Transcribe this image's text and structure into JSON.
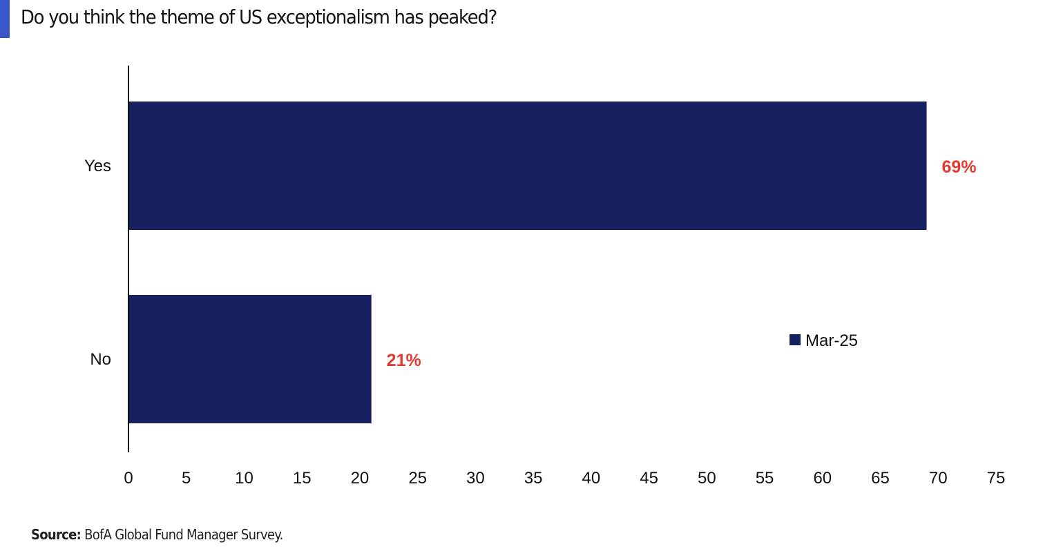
{
  "title": "Do you think the theme of US exceptionalism has peaked?",
  "source": {
    "label": "Source:",
    "text": " BofA Global Fund Manager Survey."
  },
  "colors": {
    "accent": "#3a55c8",
    "bar": "#172060",
    "data_label": "#e03c31"
  },
  "chart_data": {
    "type": "bar",
    "orientation": "horizontal",
    "title": "Do you think the theme of US exceptionalism has peaked?",
    "categories": [
      "Yes",
      "No"
    ],
    "series": [
      {
        "name": "Mar-25",
        "values": [
          69,
          21
        ]
      }
    ],
    "data_labels": [
      "69%",
      "21%"
    ],
    "xlim": [
      0,
      75
    ],
    "xticks": [
      0,
      5,
      10,
      15,
      20,
      25,
      30,
      35,
      40,
      45,
      50,
      55,
      60,
      65,
      70,
      75
    ],
    "grid": false,
    "legend": "right"
  }
}
